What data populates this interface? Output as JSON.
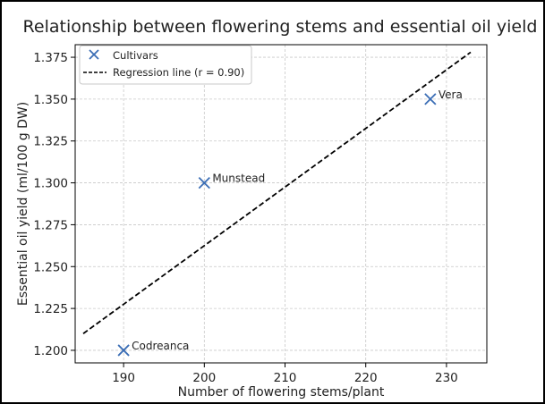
{
  "chart_data": {
    "type": "scatter",
    "title": "Relationship between flowering stems and essential oil yield",
    "xlabel": "Number of flowering stems/plant",
    "ylabel": "Essential oil yield (ml/100 g DW)",
    "xlim": [
      184,
      235
    ],
    "ylim": [
      1.1925,
      1.3825
    ],
    "xticks": [
      190,
      200,
      210,
      220,
      230
    ],
    "yticks": [
      1.2,
      1.225,
      1.25,
      1.275,
      1.3,
      1.325,
      1.35,
      1.375
    ],
    "xtick_labels": [
      "190",
      "200",
      "210",
      "220",
      "230"
    ],
    "ytick_labels": [
      "1.200",
      "1.225",
      "1.250",
      "1.275",
      "1.300",
      "1.325",
      "1.350",
      "1.375"
    ],
    "grid": true,
    "legend_position": "top-left",
    "series": [
      {
        "name": "Cultivars",
        "marker": "x",
        "color": "#3a6db5",
        "points": [
          {
            "label": "Codreanca",
            "x": 190,
            "y": 1.2
          },
          {
            "label": "Munstead",
            "x": 200,
            "y": 1.3
          },
          {
            "label": "Vera",
            "x": 228,
            "y": 1.35
          }
        ]
      },
      {
        "name": "Regression line (r = 0.90)",
        "style": "dashed",
        "color": "#000000",
        "line": {
          "x": [
            185,
            233
          ],
          "y": [
            1.21,
            1.378
          ]
        }
      }
    ]
  }
}
